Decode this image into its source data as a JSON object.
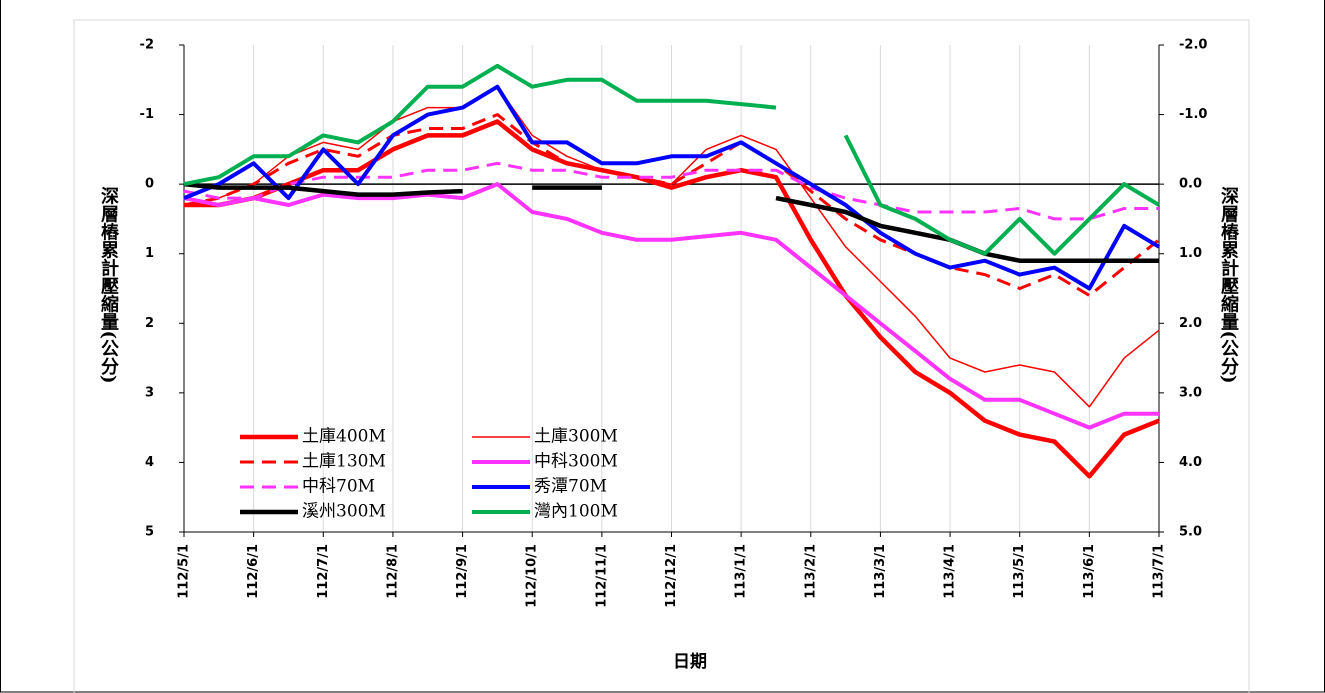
{
  "chart_data": {
    "type": "line",
    "y_label": "深層樁累計壓縮量(公分)",
    "x_label": "日期",
    "categories": [
      "112/5/1",
      null,
      "112/6/1",
      null,
      "112/7/1",
      null,
      "112/8/1",
      null,
      "112/9/1",
      null,
      "112/10/1",
      null,
      "112/11/1",
      null,
      "112/12/1",
      null,
      "113/1/1",
      null,
      "113/2/1",
      null,
      "113/3/1",
      null,
      "113/4/1",
      null,
      "113/5/1",
      null,
      "113/6/1",
      null,
      "113/7/1"
    ],
    "ylim": [
      -2,
      5
    ],
    "inverted": true,
    "yticks": [
      -2,
      -1,
      0,
      1,
      2,
      3,
      4,
      5
    ],
    "y2lim": [
      -2,
      5
    ],
    "y2ticks": [
      {
        "value": -2,
        "label": "-2.0"
      },
      {
        "value": -1,
        "label": "-1.0"
      },
      {
        "value": 0,
        "label": "0.0"
      },
      {
        "value": 1,
        "label": "1.0"
      },
      {
        "value": 2,
        "label": "2.0"
      },
      {
        "value": 3,
        "label": "3.0"
      },
      {
        "value": 4,
        "label": "4.0"
      },
      {
        "value": 5,
        "label": "5.0"
      }
    ],
    "negative_tick_color": "#ff0000",
    "grid": true,
    "series": [
      {
        "name": "土庫400M",
        "color": "#ff0000",
        "line_width": 4.5,
        "dashed": false,
        "values": [
          0.3,
          0.3,
          0.2,
          0,
          -0.2,
          -0.2,
          -0.5,
          -0.7,
          -0.7,
          -0.9,
          -0.5,
          -0.3,
          -0.2,
          -0.1,
          0.05,
          -0.1,
          -0.2,
          -0.1,
          0.8,
          1.6,
          2.2,
          2.7,
          3.0,
          3.4,
          3.6,
          3.7,
          4.2,
          3.6,
          3.4
        ]
      },
      {
        "name": "土庫300M",
        "color": "#ff0000",
        "line_width": 1.5,
        "dashed": false,
        "values": [
          0.3,
          0.2,
          0,
          -0.4,
          -0.6,
          -0.5,
          -0.9,
          -1.1,
          -1.1,
          -1.4,
          -0.7,
          -0.4,
          -0.2,
          -0.1,
          0,
          -0.5,
          -0.7,
          -0.5,
          0.2,
          0.9,
          1.4,
          1.9,
          2.5,
          2.7,
          2.6,
          2.7,
          3.2,
          2.5,
          2.1
        ]
      },
      {
        "name": "土庫130M",
        "color": "#ff0000",
        "line_width": 3,
        "dashed": true,
        "values": [
          0.3,
          0.2,
          0,
          -0.3,
          -0.5,
          -0.4,
          -0.7,
          -0.8,
          -0.8,
          -1.0,
          -0.6,
          -0.3,
          -0.2,
          -0.1,
          0,
          -0.3,
          -0.6,
          -0.3,
          0.1,
          0.5,
          0.8,
          1.0,
          1.2,
          1.3,
          1.5,
          1.3,
          1.6,
          1.2,
          0.8
        ]
      },
      {
        "name": "中科300M",
        "color": "#ff33ff",
        "line_width": 4,
        "dashed": false,
        "values": [
          0.2,
          0.3,
          0.2,
          0.3,
          0.15,
          0.2,
          0.2,
          0.15,
          0.2,
          0,
          0.4,
          0.5,
          0.7,
          0.8,
          0.8,
          0.75,
          0.7,
          0.8,
          1.2,
          1.6,
          2.0,
          2.4,
          2.8,
          3.1,
          3.1,
          3.3,
          3.5,
          3.3,
          3.3
        ]
      },
      {
        "name": "中科70M",
        "color": "#ff33ff",
        "line_width": 3,
        "dashed": true,
        "values": [
          0.1,
          0.2,
          0.2,
          0,
          -0.1,
          -0.1,
          -0.1,
          -0.2,
          -0.2,
          -0.3,
          -0.2,
          -0.2,
          -0.1,
          -0.1,
          -0.1,
          -0.2,
          -0.2,
          -0.2,
          0.05,
          0.2,
          0.3,
          0.4,
          0.4,
          0.4,
          0.35,
          0.5,
          0.5,
          0.35,
          0.35
        ]
      },
      {
        "name": "秀潭70M",
        "color": "#0000ff",
        "line_width": 4,
        "dashed": false,
        "values": [
          0.2,
          0,
          -0.3,
          0.2,
          -0.5,
          0,
          -0.7,
          -1.0,
          -1.1,
          -1.4,
          -0.6,
          -0.6,
          -0.3,
          -0.3,
          -0.4,
          -0.4,
          -0.6,
          -0.3,
          0,
          0.3,
          0.7,
          1.0,
          1.2,
          1.1,
          1.3,
          1.2,
          1.5,
          0.6,
          0.9
        ]
      },
      {
        "name": "溪州300M",
        "color": "#000000",
        "line_width": 4.5,
        "dashed": false,
        "values": [
          0,
          0.05,
          0.05,
          0.05,
          0.1,
          0.15,
          0.15,
          0.12,
          0.1,
          null,
          0.05,
          0.05,
          0.05,
          null,
          null,
          null,
          null,
          0.2,
          0.3,
          0.4,
          0.6,
          0.7,
          0.8,
          1.0,
          1.1,
          1.1,
          1.1,
          1.1,
          1.1
        ]
      },
      {
        "name": "灣內100M",
        "color": "#00b050",
        "line_width": 4,
        "dashed": false,
        "values": [
          0,
          -0.1,
          -0.4,
          -0.4,
          -0.7,
          -0.6,
          -0.9,
          -1.4,
          -1.4,
          -1.7,
          -1.4,
          -1.5,
          -1.5,
          -1.2,
          -1.2,
          -1.2,
          -1.15,
          -1.1,
          null,
          -0.7,
          0.3,
          0.5,
          0.8,
          1.0,
          0.5,
          1.0,
          0.5,
          0,
          0.3
        ]
      }
    ]
  }
}
